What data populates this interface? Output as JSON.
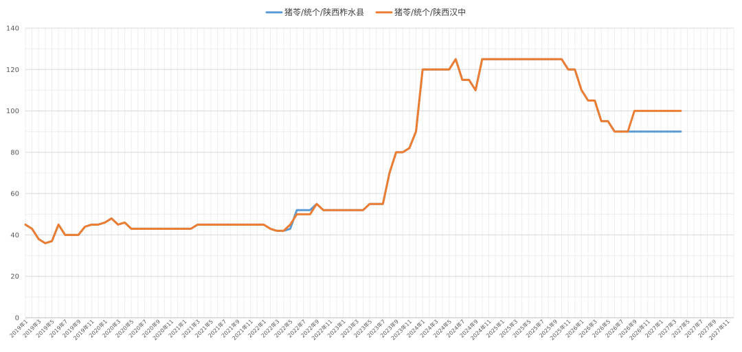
{
  "chart_data": {
    "type": "line",
    "title": "",
    "xlabel": "",
    "ylabel": "",
    "ylim": [
      0,
      140
    ],
    "yticks": [
      0,
      20,
      40,
      60,
      80,
      100,
      120,
      140
    ],
    "grid": true,
    "legend_position": "top-center",
    "x_tick_labels": [
      "2019年1",
      "2019年3",
      "2019年5",
      "2019年7",
      "2019年9",
      "2019年11",
      "2020年1",
      "2020年3",
      "2020年5",
      "2020年7",
      "2020年9",
      "2020年11",
      "2021年1",
      "2021年3",
      "2021年5",
      "2021年7",
      "2021年9",
      "2021年11",
      "2022年1",
      "2022年3",
      "2022年5",
      "2022年7",
      "2022年9",
      "2022年11",
      "2023年1",
      "2023年3",
      "2023年5",
      "2023年7",
      "2023年9",
      "2023年11",
      "2024年1",
      "2024年3",
      "2024年5",
      "2024年7",
      "2024年9",
      "2024年11",
      "2025年1",
      "2025年3",
      "2025年5",
      "2025年7",
      "2025年9",
      "2025年11",
      "2026年1",
      "2026年3",
      "2026年5",
      "2026年7",
      "2026年9",
      "2026年11",
      "2027年1",
      "2027年3",
      "2027年5",
      "2027年7",
      "2027年9",
      "2027年11"
    ],
    "series": [
      {
        "name": "猪苓/统个/陕西柞水县",
        "color": "#5B9BD5",
        "values": [
          45,
          43,
          38,
          36,
          37,
          45,
          40,
          40,
          40,
          44,
          45,
          45,
          46,
          48,
          45,
          46,
          43,
          43,
          43,
          43,
          43,
          43,
          43,
          43,
          43,
          43,
          45,
          45,
          45,
          45,
          45,
          45,
          45,
          45,
          45,
          45,
          45,
          43,
          42,
          42,
          43,
          52,
          52,
          52,
          55,
          52,
          52,
          52,
          52,
          52,
          52,
          52,
          55,
          55,
          55,
          70,
          80,
          80,
          82,
          90,
          120,
          120,
          120,
          120,
          120,
          125,
          115,
          115,
          110,
          125,
          125,
          125,
          125,
          125,
          125,
          125,
          125,
          125,
          125,
          125,
          125,
          125,
          120,
          120,
          110,
          105,
          105,
          95,
          95,
          90,
          90,
          90,
          90,
          90,
          90,
          90,
          90,
          90,
          90,
          90
        ]
      },
      {
        "name": "猪苓/统个/陕西汉中",
        "color": "#ED7D31",
        "values": [
          45,
          43,
          38,
          36,
          37,
          45,
          40,
          40,
          40,
          44,
          45,
          45,
          46,
          48,
          45,
          46,
          43,
          43,
          43,
          43,
          43,
          43,
          43,
          43,
          43,
          43,
          45,
          45,
          45,
          45,
          45,
          45,
          45,
          45,
          45,
          45,
          45,
          43,
          42,
          42,
          45,
          50,
          50,
          50,
          55,
          52,
          52,
          52,
          52,
          52,
          52,
          52,
          55,
          55,
          55,
          70,
          80,
          80,
          82,
          90,
          120,
          120,
          120,
          120,
          120,
          125,
          115,
          115,
          110,
          125,
          125,
          125,
          125,
          125,
          125,
          125,
          125,
          125,
          125,
          125,
          125,
          125,
          120,
          120,
          110,
          105,
          105,
          95,
          95,
          90,
          90,
          90,
          100,
          100,
          100,
          100,
          100,
          100,
          100,
          100
        ]
      }
    ]
  }
}
